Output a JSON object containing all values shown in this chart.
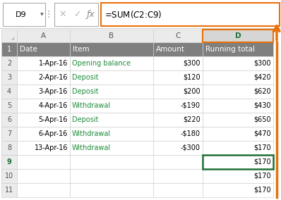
{
  "formula_bar_cell": "D9",
  "formula_bar_formula": "=SUM($C$2:C9)",
  "col_headers": [
    "A",
    "B",
    "C",
    "D"
  ],
  "header_row": [
    "Date",
    "Item",
    "Amount",
    "Running total"
  ],
  "data_rows": [
    [
      "1-Apr-16",
      "Opening balance",
      "$300",
      "$300"
    ],
    [
      "2-Apr-16",
      "Deposit",
      "$120",
      "$420"
    ],
    [
      "3-Apr-16",
      "Deposit",
      "$200",
      "$620"
    ],
    [
      "4-Apr-16",
      "Withdrawal",
      "-$190",
      "$430"
    ],
    [
      "5-Apr-16",
      "Deposit",
      "$220",
      "$650"
    ],
    [
      "6-Apr-16",
      "Withdrawal",
      "-$180",
      "$470"
    ],
    [
      "13-Apr-16",
      "Withdrawal",
      "-$300",
      "$170"
    ]
  ],
  "extra_d_values": [
    "$170",
    "$170",
    "$170"
  ],
  "header_bg": "#7F7F7F",
  "header_text": "#FFFFFF",
  "col_header_bg": "#EBEBEB",
  "col_header_text": "#555555",
  "selected_col_header_bg": "#D6D6D6",
  "selected_col_header_text": "#1F6E35",
  "item_green": "#1F8C3B",
  "row_num_selected_color": "#1F6E35",
  "selected_cell_border_color": "#1F6E35",
  "orange_color": "#E8710A",
  "cell_border_color": "#D0D0D0",
  "bg_white": "#FFFFFF",
  "fig_w": 3.98,
  "fig_h": 2.84,
  "dpi": 100
}
